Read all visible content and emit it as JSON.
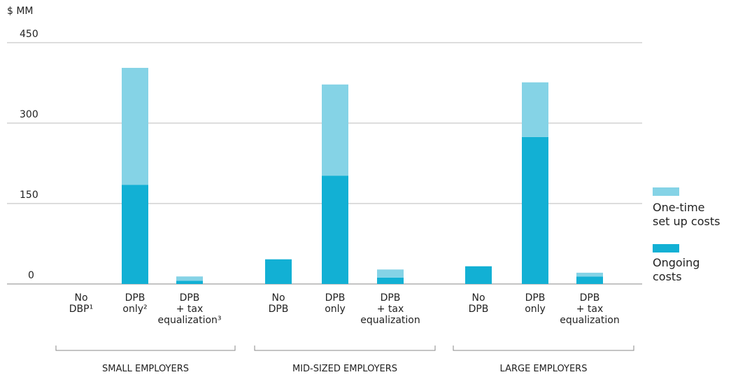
{
  "chart_data": {
    "type": "bar",
    "stacked": true,
    "y_label": "$ MM",
    "categories": [
      "No\nDBP¹",
      "DPB\nonly²",
      "DPB\n+ tax\nequalization³",
      "No\nDPB",
      "DPB\nonly",
      "DPB\n+ tax\nequalization",
      "No\nDPB",
      "DPB\nonly",
      "DPB\n+ tax\nequalization"
    ],
    "groups": [
      {
        "name": "SMALL EMPLOYERS",
        "size": 3
      },
      {
        "name": "MID-SIZED EMPLOYERS",
        "size": 3
      },
      {
        "name": "LARGE EMPLOYERS",
        "size": 3
      }
    ],
    "series": [
      {
        "name": "Ongoing\ncosts",
        "color": "#12b0d4",
        "values": [
          0,
          185,
          6,
          46,
          202,
          12,
          33,
          274,
          14
        ]
      },
      {
        "name": "One-time\nset up costs",
        "color": "#85d3e6",
        "values": [
          0,
          218,
          8,
          0,
          170,
          15,
          0,
          102,
          7
        ]
      }
    ],
    "ylim": [
      0,
      450
    ],
    "yticks": [
      0,
      150,
      300,
      450
    ],
    "grid": true,
    "legend": "right"
  }
}
